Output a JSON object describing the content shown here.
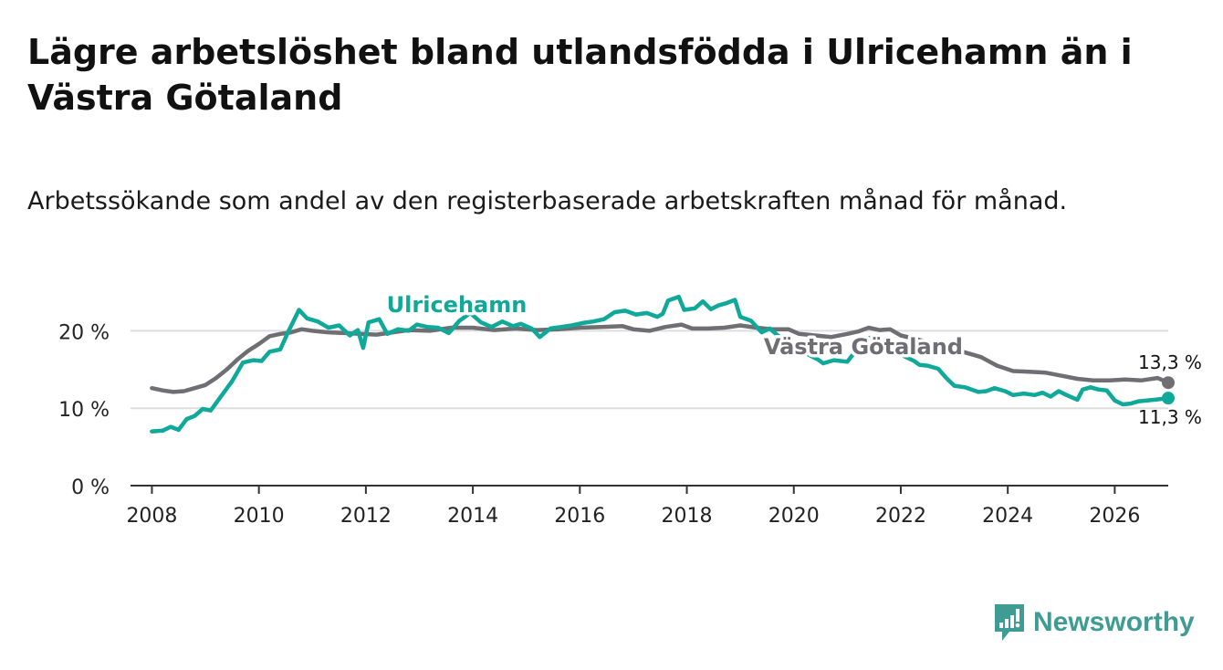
{
  "title": "Lägre arbetslöshet bland utlandsfödda i Ulricehamn än i Västra Götaland",
  "subtitle": "Arbetssökande som andel av den registerbaserade arbetskraften månad för månad.",
  "brand": "Newsworthy",
  "colors": {
    "ulricehamn": "#0fa899",
    "vastra_gotaland": "#6e6e73",
    "grid": "#dddddd",
    "axis": "#333333",
    "brand": "#3f9c92"
  },
  "chart_data": {
    "type": "line",
    "title": "Lägre arbetslöshet bland utlandsfödda i Ulricehamn än i Västra Götaland",
    "xlabel": "",
    "ylabel": "",
    "xlim": [
      2007.6,
      2027.0
    ],
    "ylim": [
      0,
      25
    ],
    "x_ticks": [
      2008,
      2010,
      2012,
      2014,
      2016,
      2018,
      2020,
      2022,
      2024,
      2026
    ],
    "x_tick_labels": [
      "2008",
      "2010",
      "2012",
      "2014",
      "2016",
      "2018",
      "2020",
      "2022",
      "2024",
      "2026"
    ],
    "y_ticks": [
      0,
      10,
      20
    ],
    "y_tick_labels": [
      "0 %",
      "10 %",
      "20 %"
    ],
    "grid": true,
    "series": [
      {
        "name": "Ulricehamn",
        "key": "ulricehamn",
        "end_label": "11,3 %",
        "points": [
          [
            2008.0,
            7.0
          ],
          [
            2008.2,
            7.1
          ],
          [
            2008.35,
            7.6
          ],
          [
            2008.5,
            7.2
          ],
          [
            2008.65,
            8.6
          ],
          [
            2008.8,
            9.0
          ],
          [
            2008.95,
            9.9
          ],
          [
            2009.1,
            9.7
          ],
          [
            2009.3,
            11.6
          ],
          [
            2009.5,
            13.5
          ],
          [
            2009.7,
            15.9
          ],
          [
            2009.9,
            16.2
          ],
          [
            2010.05,
            16.1
          ],
          [
            2010.2,
            17.3
          ],
          [
            2010.4,
            17.6
          ],
          [
            2010.55,
            19.9
          ],
          [
            2010.75,
            22.7
          ],
          [
            2010.9,
            21.6
          ],
          [
            2011.1,
            21.2
          ],
          [
            2011.3,
            20.4
          ],
          [
            2011.5,
            20.7
          ],
          [
            2011.7,
            19.4
          ],
          [
            2011.85,
            20.1
          ],
          [
            2011.95,
            17.8
          ],
          [
            2012.05,
            21.1
          ],
          [
            2012.25,
            21.5
          ],
          [
            2012.4,
            19.6
          ],
          [
            2012.6,
            20.2
          ],
          [
            2012.8,
            20.0
          ],
          [
            2012.95,
            20.8
          ],
          [
            2013.15,
            20.5
          ],
          [
            2013.35,
            20.4
          ],
          [
            2013.55,
            19.7
          ],
          [
            2013.75,
            21.3
          ],
          [
            2013.95,
            22.3
          ],
          [
            2014.15,
            21.1
          ],
          [
            2014.35,
            20.5
          ],
          [
            2014.55,
            21.2
          ],
          [
            2014.75,
            20.6
          ],
          [
            2014.9,
            20.9
          ],
          [
            2015.1,
            20.3
          ],
          [
            2015.25,
            19.2
          ],
          [
            2015.45,
            20.3
          ],
          [
            2015.65,
            20.5
          ],
          [
            2015.85,
            20.7
          ],
          [
            2016.05,
            21.0
          ],
          [
            2016.25,
            21.2
          ],
          [
            2016.45,
            21.5
          ],
          [
            2016.65,
            22.4
          ],
          [
            2016.85,
            22.6
          ],
          [
            2017.05,
            22.1
          ],
          [
            2017.25,
            22.3
          ],
          [
            2017.45,
            21.8
          ],
          [
            2017.55,
            22.2
          ],
          [
            2017.65,
            23.9
          ],
          [
            2017.85,
            24.4
          ],
          [
            2017.95,
            22.7
          ],
          [
            2018.15,
            22.9
          ],
          [
            2018.3,
            23.8
          ],
          [
            2018.45,
            22.8
          ],
          [
            2018.6,
            23.3
          ],
          [
            2018.75,
            23.6
          ],
          [
            2018.9,
            24.0
          ],
          [
            2019.0,
            21.8
          ],
          [
            2019.2,
            21.3
          ],
          [
            2019.4,
            19.8
          ],
          [
            2019.55,
            20.3
          ],
          [
            2019.75,
            19.1
          ],
          [
            2019.9,
            18.2
          ],
          [
            2020.05,
            17.4
          ],
          [
            2020.25,
            17.0
          ],
          [
            2020.45,
            16.3
          ],
          [
            2020.55,
            15.8
          ],
          [
            2020.75,
            16.2
          ],
          [
            2021.0,
            16.0
          ],
          [
            2021.2,
            17.8
          ],
          [
            2021.35,
            19.0
          ],
          [
            2021.5,
            19.2
          ],
          [
            2021.65,
            18.4
          ],
          [
            2021.8,
            17.8
          ],
          [
            2021.95,
            17.1
          ],
          [
            2022.1,
            16.6
          ],
          [
            2022.25,
            16.1
          ],
          [
            2022.35,
            15.6
          ],
          [
            2022.5,
            15.5
          ],
          [
            2022.7,
            15.1
          ],
          [
            2022.85,
            13.9
          ],
          [
            2023.0,
            12.9
          ],
          [
            2023.2,
            12.7
          ],
          [
            2023.45,
            12.1
          ],
          [
            2023.6,
            12.2
          ],
          [
            2023.75,
            12.6
          ],
          [
            2023.95,
            12.2
          ],
          [
            2024.1,
            11.7
          ],
          [
            2024.3,
            11.9
          ],
          [
            2024.5,
            11.7
          ],
          [
            2024.65,
            12.0
          ],
          [
            2024.8,
            11.5
          ],
          [
            2024.95,
            12.2
          ],
          [
            2025.1,
            11.7
          ],
          [
            2025.3,
            11.1
          ],
          [
            2025.4,
            12.4
          ],
          [
            2025.55,
            12.7
          ],
          [
            2025.7,
            12.4
          ],
          [
            2025.85,
            12.3
          ],
          [
            2026.0,
            11.0
          ],
          [
            2026.15,
            10.5
          ],
          [
            2026.3,
            10.6
          ],
          [
            2026.45,
            10.9
          ],
          [
            2026.6,
            11.0
          ],
          [
            2026.75,
            11.1
          ],
          [
            2027.0,
            11.3
          ]
        ]
      },
      {
        "name": "Västra Götaland",
        "key": "vastra_gotaland",
        "end_label": "13,3 %",
        "points": [
          [
            2008.0,
            12.6
          ],
          [
            2008.2,
            12.3
          ],
          [
            2008.4,
            12.1
          ],
          [
            2008.6,
            12.2
          ],
          [
            2008.8,
            12.6
          ],
          [
            2009.0,
            13.0
          ],
          [
            2009.2,
            13.9
          ],
          [
            2009.4,
            15.0
          ],
          [
            2009.6,
            16.3
          ],
          [
            2009.8,
            17.4
          ],
          [
            2010.0,
            18.3
          ],
          [
            2010.2,
            19.3
          ],
          [
            2010.4,
            19.6
          ],
          [
            2010.6,
            19.8
          ],
          [
            2010.8,
            20.2
          ],
          [
            2011.0,
            20.0
          ],
          [
            2011.3,
            19.8
          ],
          [
            2011.6,
            19.7
          ],
          [
            2011.9,
            19.6
          ],
          [
            2012.2,
            19.5
          ],
          [
            2012.5,
            19.8
          ],
          [
            2012.8,
            20.1
          ],
          [
            2013.2,
            20.0
          ],
          [
            2013.6,
            20.4
          ],
          [
            2014.0,
            20.4
          ],
          [
            2014.4,
            20.1
          ],
          [
            2014.8,
            20.3
          ],
          [
            2015.2,
            20.1
          ],
          [
            2015.6,
            20.2
          ],
          [
            2016.0,
            20.4
          ],
          [
            2016.4,
            20.5
          ],
          [
            2016.8,
            20.6
          ],
          [
            2017.0,
            20.2
          ],
          [
            2017.3,
            20.0
          ],
          [
            2017.6,
            20.5
          ],
          [
            2017.9,
            20.8
          ],
          [
            2018.1,
            20.3
          ],
          [
            2018.4,
            20.3
          ],
          [
            2018.7,
            20.4
          ],
          [
            2019.0,
            20.7
          ],
          [
            2019.3,
            20.4
          ],
          [
            2019.6,
            20.2
          ],
          [
            2019.9,
            20.2
          ],
          [
            2020.1,
            19.6
          ],
          [
            2020.4,
            19.4
          ],
          [
            2020.7,
            19.2
          ],
          [
            2021.0,
            19.6
          ],
          [
            2021.2,
            19.9
          ],
          [
            2021.4,
            20.4
          ],
          [
            2021.6,
            20.1
          ],
          [
            2021.8,
            20.2
          ],
          [
            2022.0,
            19.4
          ],
          [
            2022.3,
            18.9
          ],
          [
            2022.6,
            18.4
          ],
          [
            2022.9,
            17.8
          ],
          [
            2023.2,
            17.2
          ],
          [
            2023.5,
            16.6
          ],
          [
            2023.8,
            15.5
          ],
          [
            2024.1,
            14.8
          ],
          [
            2024.4,
            14.7
          ],
          [
            2024.7,
            14.6
          ],
          [
            2025.0,
            14.2
          ],
          [
            2025.3,
            13.8
          ],
          [
            2025.6,
            13.6
          ],
          [
            2025.9,
            13.6
          ],
          [
            2026.2,
            13.7
          ],
          [
            2026.5,
            13.6
          ],
          [
            2026.8,
            13.9
          ],
          [
            2027.0,
            13.3
          ]
        ]
      }
    ],
    "annotations": [
      {
        "text": "Ulricehamn",
        "series": "ulricehamn"
      },
      {
        "text": "Västra Götaland",
        "series": "vastra_gotaland"
      }
    ]
  }
}
